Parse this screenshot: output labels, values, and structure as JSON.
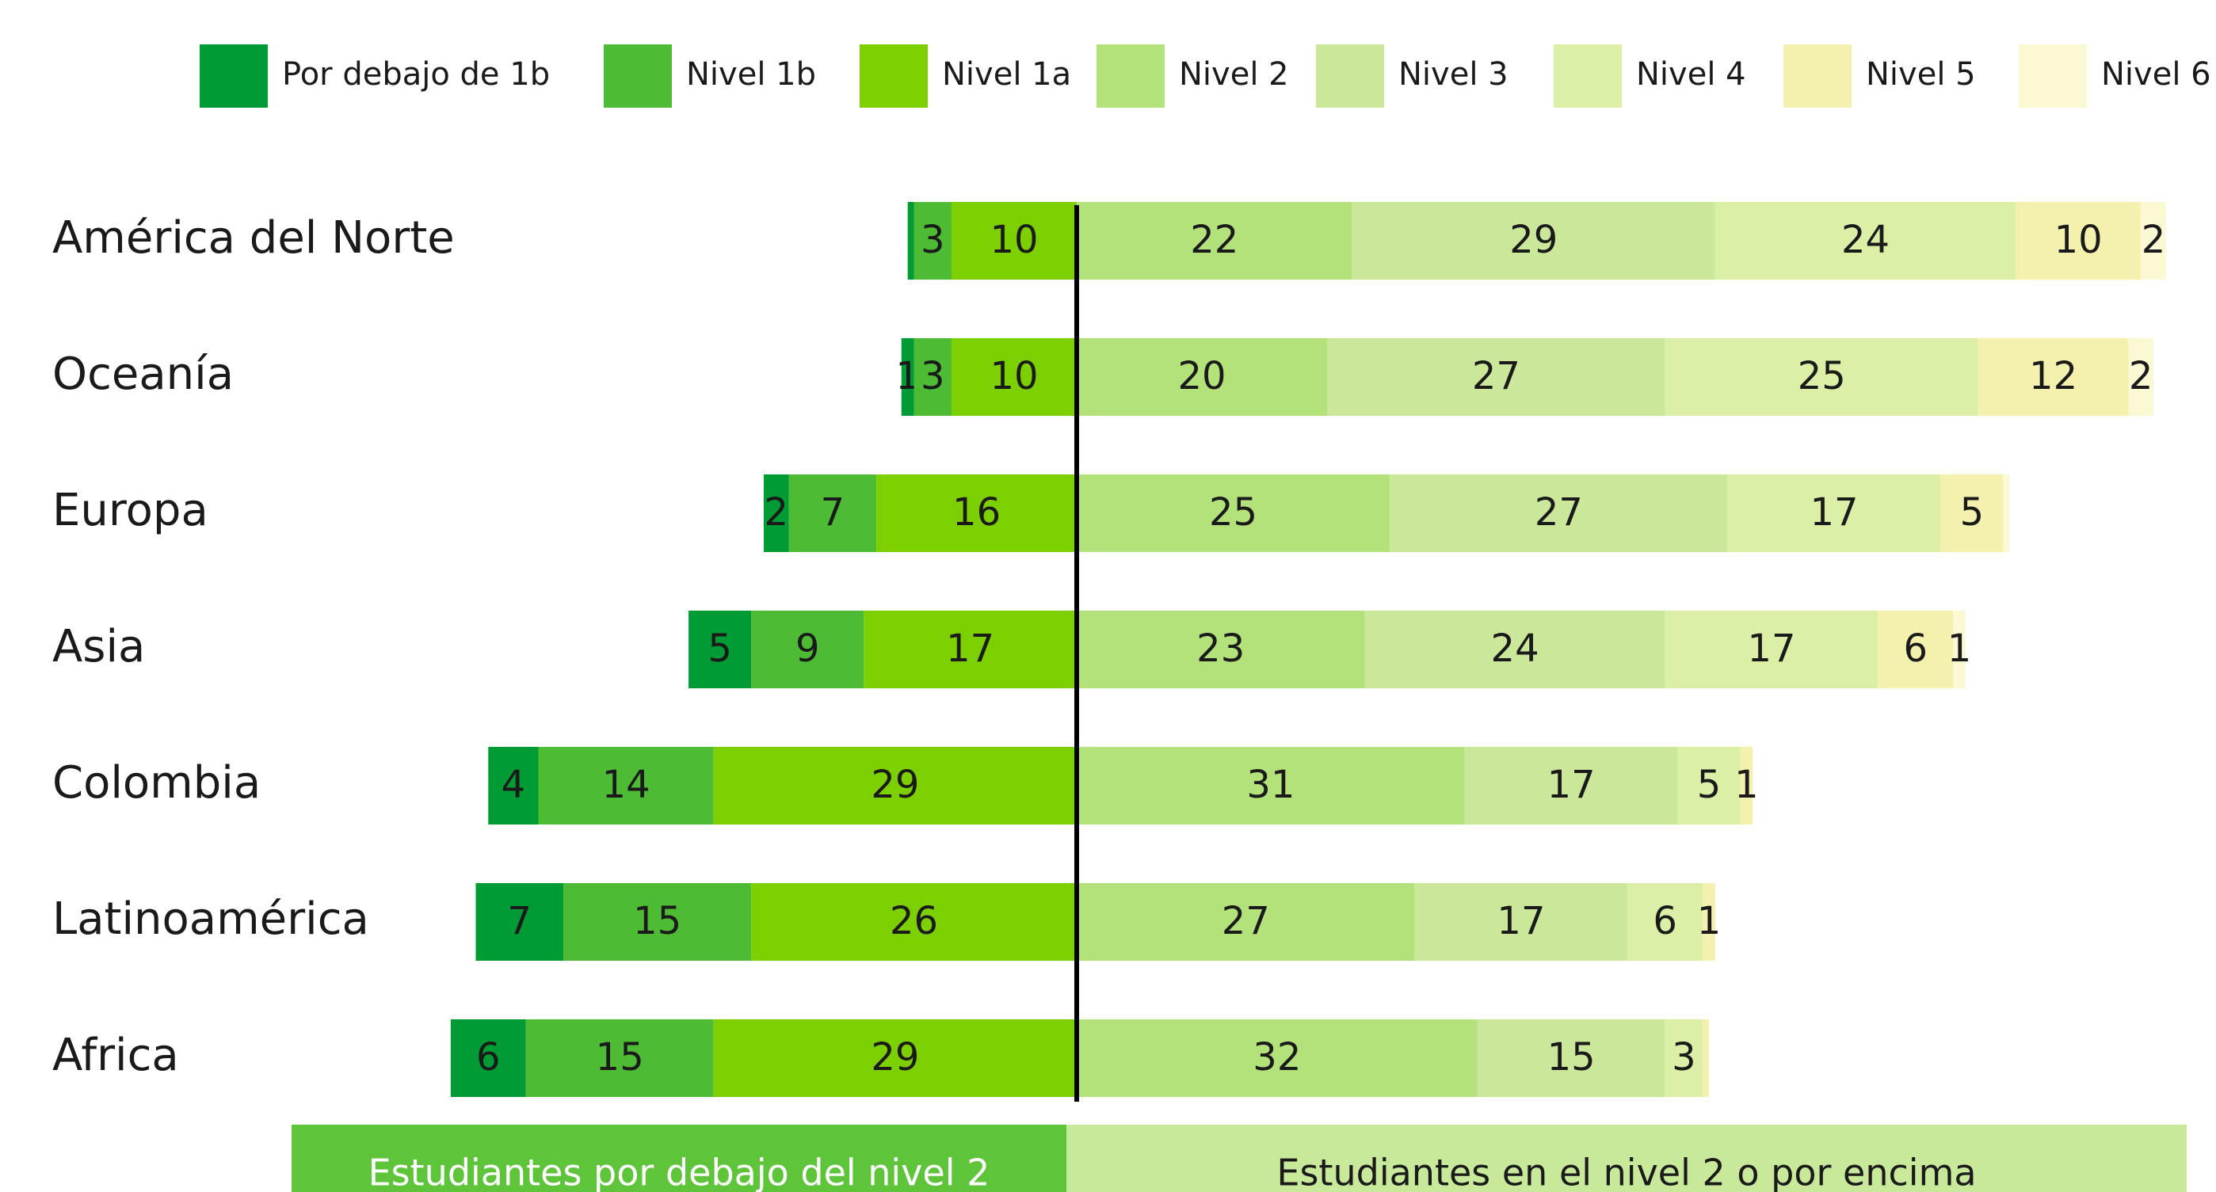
{
  "chart_data": {
    "type": "diverging_bar",
    "categories": [
      "América del Norte",
      "Oceanía",
      "Europa",
      "Asia",
      "Colombia",
      "Latinoamérica",
      "Africa"
    ],
    "series": [
      {
        "name": "Por debajo de 1b",
        "color": "#009b34",
        "values": [
          0.5,
          1,
          2,
          5,
          4,
          7,
          6
        ]
      },
      {
        "name": "Nivel 1b",
        "color": "#4dbb33",
        "values": [
          3,
          3,
          7,
          9,
          14,
          15,
          15
        ]
      },
      {
        "name": "Nivel 1a",
        "color": "#7dd000",
        "values": [
          10,
          10,
          16,
          17,
          29,
          26,
          29
        ]
      },
      {
        "name": "Nivel 2",
        "color": "#b3e27a",
        "values": [
          22,
          20,
          25,
          23,
          31,
          27,
          32
        ]
      },
      {
        "name": "Nivel 3",
        "color": "#cbe89a",
        "values": [
          29,
          27,
          27,
          24,
          17,
          17,
          15
        ]
      },
      {
        "name": "Nivel 4",
        "color": "#dcefa6",
        "values": [
          24,
          25,
          17,
          17,
          5,
          6,
          3
        ]
      },
      {
        "name": "Nivel 5",
        "color": "#f3f1ad",
        "values": [
          10,
          12,
          5,
          6,
          1,
          1,
          0.5
        ]
      },
      {
        "name": "Nivel 6",
        "color": "#fbf8d4",
        "values": [
          2,
          2,
          0.5,
          1,
          0,
          0,
          0
        ]
      }
    ],
    "xlim": [
      -86,
      91
    ],
    "annotations": [
      "Estudiantes por debajo del nivel 2",
      "Estudiantes en el nivel 2 o por encima"
    ]
  }
}
